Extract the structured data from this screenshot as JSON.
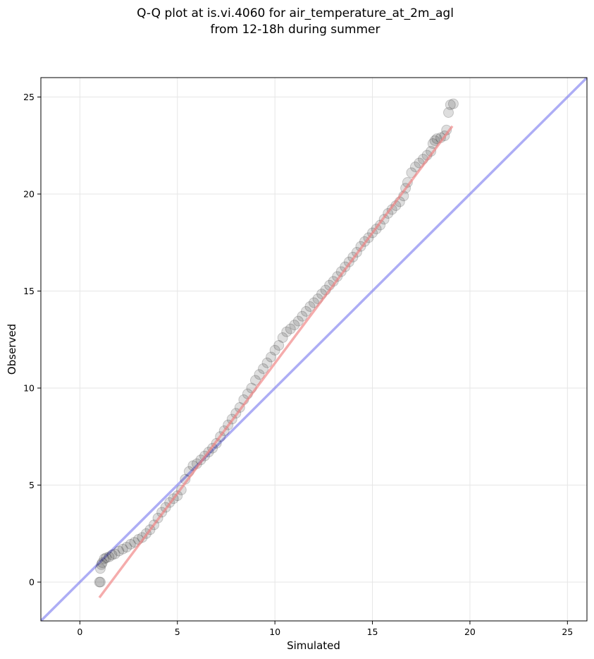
{
  "chart_data": {
    "type": "scatter",
    "title_line1": "Q-Q plot at is.vi.4060 for air_temperature_at_2m_agl",
    "title_line2": "from 12-18h during summer",
    "xlabel": "Simulated",
    "ylabel": "Observed",
    "xlim": [
      -2,
      26
    ],
    "ylim": [
      -2,
      26
    ],
    "xticks": [
      0,
      5,
      10,
      15,
      20,
      25
    ],
    "yticks": [
      0,
      5,
      10,
      15,
      20,
      25
    ],
    "grid": true,
    "reference_line": {
      "description": "1:1 line",
      "color": "#7777ee",
      "slope": 1,
      "intercept": 0
    },
    "fit_line": {
      "color": "#f08080",
      "x": [
        1.0,
        19.1
      ],
      "y": [
        -0.8,
        23.5
      ]
    },
    "points_color": "#000000",
    "points": [
      [
        1.0,
        0.0
      ],
      [
        1.05,
        0.0
      ],
      [
        1.05,
        0.7
      ],
      [
        1.1,
        0.9
      ],
      [
        1.15,
        1.0
      ],
      [
        1.25,
        1.2
      ],
      [
        1.35,
        1.25
      ],
      [
        1.5,
        1.3
      ],
      [
        1.65,
        1.4
      ],
      [
        1.8,
        1.45
      ],
      [
        2.0,
        1.6
      ],
      [
        2.2,
        1.7
      ],
      [
        2.4,
        1.8
      ],
      [
        2.6,
        1.95
      ],
      [
        2.8,
        2.05
      ],
      [
        3.0,
        2.2
      ],
      [
        3.2,
        2.3
      ],
      [
        3.4,
        2.5
      ],
      [
        3.6,
        2.7
      ],
      [
        3.8,
        2.95
      ],
      [
        4.0,
        3.3
      ],
      [
        4.2,
        3.6
      ],
      [
        4.4,
        3.85
      ],
      [
        4.6,
        4.1
      ],
      [
        4.8,
        4.3
      ],
      [
        5.0,
        4.45
      ],
      [
        5.2,
        4.75
      ],
      [
        5.4,
        5.3
      ],
      [
        5.6,
        5.7
      ],
      [
        5.8,
        6.0
      ],
      [
        6.0,
        6.1
      ],
      [
        6.2,
        6.3
      ],
      [
        6.4,
        6.5
      ],
      [
        6.6,
        6.7
      ],
      [
        6.8,
        6.9
      ],
      [
        7.0,
        7.15
      ],
      [
        7.2,
        7.5
      ],
      [
        7.4,
        7.8
      ],
      [
        7.6,
        8.1
      ],
      [
        7.8,
        8.4
      ],
      [
        8.0,
        8.7
      ],
      [
        8.2,
        9.0
      ],
      [
        8.4,
        9.4
      ],
      [
        8.6,
        9.7
      ],
      [
        8.8,
        10.0
      ],
      [
        9.0,
        10.4
      ],
      [
        9.2,
        10.7
      ],
      [
        9.4,
        11.0
      ],
      [
        9.6,
        11.3
      ],
      [
        9.8,
        11.6
      ],
      [
        10.0,
        11.95
      ],
      [
        10.2,
        12.2
      ],
      [
        10.4,
        12.6
      ],
      [
        10.6,
        12.9
      ],
      [
        10.8,
        13.05
      ],
      [
        11.0,
        13.25
      ],
      [
        11.2,
        13.45
      ],
      [
        11.4,
        13.7
      ],
      [
        11.6,
        13.95
      ],
      [
        11.8,
        14.2
      ],
      [
        12.0,
        14.4
      ],
      [
        12.2,
        14.6
      ],
      [
        12.4,
        14.85
      ],
      [
        12.6,
        15.05
      ],
      [
        12.8,
        15.3
      ],
      [
        13.0,
        15.5
      ],
      [
        13.2,
        15.75
      ],
      [
        13.4,
        16.0
      ],
      [
        13.6,
        16.25
      ],
      [
        13.8,
        16.5
      ],
      [
        14.0,
        16.75
      ],
      [
        14.2,
        17.0
      ],
      [
        14.4,
        17.3
      ],
      [
        14.6,
        17.55
      ],
      [
        14.8,
        17.75
      ],
      [
        15.0,
        18.0
      ],
      [
        15.2,
        18.2
      ],
      [
        15.4,
        18.4
      ],
      [
        15.6,
        18.7
      ],
      [
        15.8,
        19.0
      ],
      [
        16.0,
        19.2
      ],
      [
        16.2,
        19.4
      ],
      [
        16.4,
        19.6
      ],
      [
        16.6,
        19.9
      ],
      [
        16.7,
        20.3
      ],
      [
        16.8,
        20.6
      ],
      [
        17.0,
        21.1
      ],
      [
        17.2,
        21.4
      ],
      [
        17.4,
        21.6
      ],
      [
        17.6,
        21.8
      ],
      [
        17.8,
        22.0
      ],
      [
        18.0,
        22.2
      ],
      [
        18.1,
        22.6
      ],
      [
        18.2,
        22.75
      ],
      [
        18.3,
        22.85
      ],
      [
        18.5,
        22.9
      ],
      [
        18.7,
        23.0
      ],
      [
        18.8,
        23.3
      ],
      [
        18.9,
        24.2
      ],
      [
        19.0,
        24.6
      ],
      [
        19.15,
        24.65
      ]
    ]
  }
}
